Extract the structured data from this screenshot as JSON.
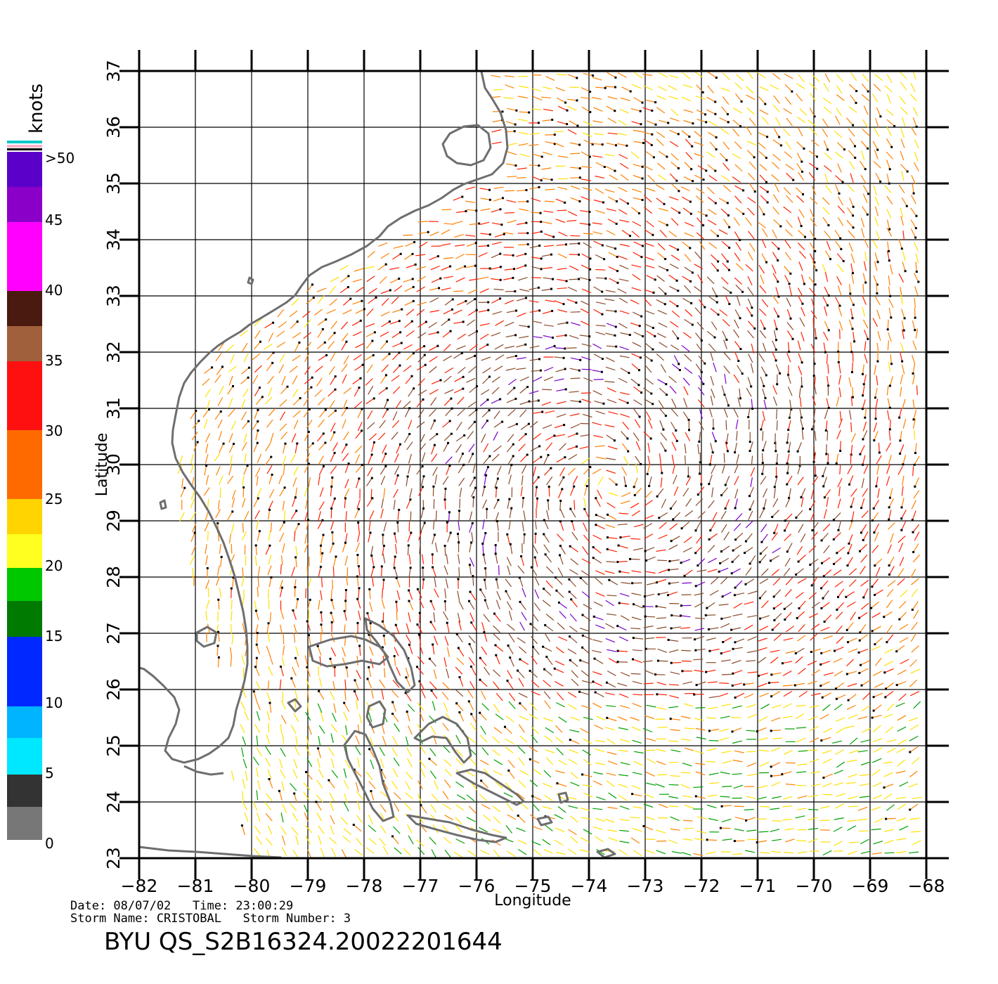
{
  "map": {
    "lon_ticks": [
      "-82",
      "-81",
      "-80",
      "-79",
      "-78",
      "-77",
      "-76",
      "-75",
      "-74",
      "-73",
      "-72",
      "-71",
      "-70",
      "-69",
      "-68"
    ],
    "lat_ticks": [
      "23",
      "24",
      "25",
      "26",
      "27",
      "28",
      "29",
      "30",
      "31",
      "32",
      "33",
      "34",
      "35",
      "36",
      "37"
    ],
    "lon_range": [
      -82,
      -68
    ],
    "lat_range": [
      23,
      37
    ],
    "xlabel": "Longitude",
    "ylabel": "Latitude",
    "grid": true,
    "coastline_color": "#6e6e6e"
  },
  "legend": {
    "unit": "knots",
    "labels": [
      ">50",
      "45",
      "40",
      "35",
      "30",
      "25",
      "20",
      "15",
      "10",
      "5",
      "0"
    ],
    "colors": {
      "0-5": "#4a4a4a",
      "5-10": "#00c8ff",
      "10-15": "#0040ff",
      "15-20": "#00a000",
      "20-25": "#ffe000",
      "25-30": "#ff8000",
      "30-35": "#ff2000",
      "35-40": "#8b4a2a",
      "40-45": "#ff00ff",
      ">45": "#7a00c8"
    }
  },
  "info": {
    "date_line": "Date: 08/07/02   Time: 23:00:29",
    "storm_line": "Storm Name: CRISTOBAL   Storm Number: 3",
    "product_id": "BYU QS_S2B16324.20022201644"
  }
}
